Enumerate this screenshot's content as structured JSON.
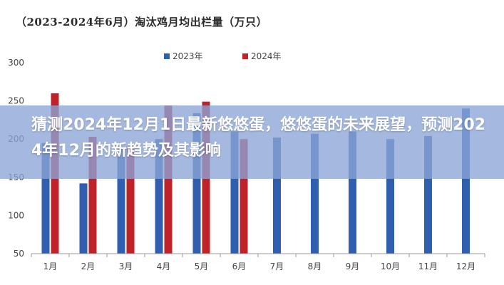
{
  "banner": {
    "headline": "猜测2024年12月1日最新悠悠蛋，悠悠蛋的未来展望，预测2024年12月的新趋势及其影响"
  },
  "colors": {
    "series_2023": "#2f5fae",
    "series_2024": "#c0222a",
    "banner": "#8ca5d7",
    "axis": "#999999"
  },
  "chart_data": {
    "type": "bar",
    "title": "（2023-2024年6月）淘汰鸡月均出栏量（万只）",
    "categories": [
      "1月",
      "2月",
      "3月",
      "4月",
      "5月",
      "6月",
      "7月",
      "8月",
      "9月",
      "10月",
      "11月",
      "12月"
    ],
    "series": [
      {
        "name": "2023年",
        "values": [
          195,
          142,
          190,
          200,
          234,
          210,
          202,
          207,
          210,
          200,
          204,
          240
        ]
      },
      {
        "name": "2024年",
        "values": [
          260,
          203,
          190,
          244,
          249,
          200,
          null,
          null,
          null,
          null,
          null,
          null
        ]
      }
    ],
    "y_ticks": [
      "50",
      "100",
      "150",
      "200",
      "250",
      "300"
    ],
    "ylim": [
      50,
      300
    ],
    "legend_position": "top-center",
    "grid": false
  }
}
